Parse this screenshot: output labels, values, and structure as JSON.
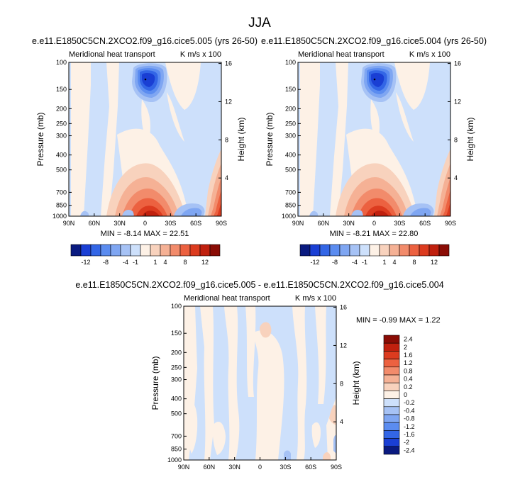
{
  "page": {
    "title": "JJA"
  },
  "panels": [
    {
      "title": "e.e11.E1850C5CN.2XCO2.f09_g16.cice5.005 (yrs 26-50)",
      "left_label": "Meridional heat transport",
      "right_label": "K m/s x 100",
      "stats": "MIN = -8.14  MAX = 22.51"
    },
    {
      "title": "e.e11.E1850C5CN.2XCO2.f09_g16.cice5.004 (yrs 26-50)",
      "left_label": "Meridional heat transport",
      "right_label": "K m/s x 100",
      "stats": "MIN = -8.21  MAX = 22.80"
    },
    {
      "title": "e.e11.E1850C5CN.2XCO2.f09_g16.cice5.005 - e.e11.E1850C5CN.2XCO2.f09_g16.cice5.004",
      "left_label": "Meridional heat transport",
      "right_label": "K m/s x 100",
      "stats": "MIN = -0.99  MAX =  1.22"
    }
  ],
  "colorbars": {
    "top_labels": [
      "-12",
      "-8",
      "-4",
      "-1",
      "1",
      "4",
      "8",
      "12"
    ],
    "top_colors": [
      "#0a1a80",
      "#1a3fd4",
      "#3366e6",
      "#5b8cf0",
      "#7fa6f2",
      "#a6c2f5",
      "#cde0fb",
      "#fdf1e6",
      "#f8d2bd",
      "#f5b195",
      "#f28b6b",
      "#ec6140",
      "#dc3b1f",
      "#c0200e",
      "#8a0c05"
    ],
    "diff_labels": [
      "2.4",
      "2",
      "1.6",
      "1.2",
      "0.8",
      "0.4",
      "0.2",
      "0",
      "-0.2",
      "-0.4",
      "-0.8",
      "-1.2",
      "-1.6",
      "-2",
      "-2.4"
    ],
    "diff_colors": [
      "#8a0c05",
      "#c0200e",
      "#dc3b1f",
      "#ec6140",
      "#f28b6b",
      "#f5b195",
      "#f8d2bd",
      "#fdf1e6",
      "#cde0fb",
      "#a6c2f5",
      "#7fa6f2",
      "#5b8cf0",
      "#3366e6",
      "#1a3fd4",
      "#0a1a80"
    ]
  },
  "chart_data": [
    {
      "type": "heatmap",
      "title": "e.e11.E1850C5CN.2XCO2.f09_g16.cice5.005 (yrs 26-50)",
      "xlabel": "",
      "ylabel": "Pressure (mb)",
      "y2label": "Height (km)",
      "x_ticks": [
        "90N",
        "60N",
        "30N",
        "0",
        "30S",
        "60S",
        "90S"
      ],
      "y_ticks": [
        100,
        150,
        200,
        250,
        300,
        400,
        500,
        700,
        850,
        1000
      ],
      "y2_ticks": [
        16,
        12,
        8,
        4
      ],
      "xlim": [
        90,
        -90
      ],
      "ylim": [
        1000,
        100
      ],
      "levels": [
        -12,
        -8,
        -4,
        -1,
        1,
        4,
        8,
        12
      ],
      "min": -8.14,
      "max": 22.51,
      "features": [
        {
          "lat": 6,
          "p": 200,
          "value": -8.14
        },
        {
          "lat": -5,
          "p": 950,
          "value": 22.51
        },
        {
          "lat": -75,
          "p": 900,
          "value": 10
        },
        {
          "lat": -32,
          "p": 980,
          "value": -6
        }
      ]
    },
    {
      "type": "heatmap",
      "title": "e.e11.E1850C5CN.2XCO2.f09_g16.cice5.004 (yrs 26-50)",
      "xlabel": "",
      "ylabel": "Pressure (mb)",
      "y2label": "Height (km)",
      "x_ticks": [
        "90N",
        "60N",
        "30N",
        "0",
        "30S",
        "60S",
        "90S"
      ],
      "y_ticks": [
        100,
        150,
        200,
        250,
        300,
        400,
        500,
        700,
        850,
        1000
      ],
      "y2_ticks": [
        16,
        12,
        8,
        4
      ],
      "xlim": [
        90,
        -90
      ],
      "ylim": [
        1000,
        100
      ],
      "levels": [
        -12,
        -8,
        -4,
        -1,
        1,
        4,
        8,
        12
      ],
      "min": -8.21,
      "max": 22.8,
      "features": [
        {
          "lat": 6,
          "p": 200,
          "value": -8.21
        },
        {
          "lat": -5,
          "p": 950,
          "value": 22.8
        },
        {
          "lat": -75,
          "p": 900,
          "value": 10
        },
        {
          "lat": -32,
          "p": 980,
          "value": -6
        }
      ]
    },
    {
      "type": "heatmap",
      "title": "e.e11.E1850C5CN.2XCO2.f09_g16.cice5.005 - e.e11.E1850C5CN.2XCO2.f09_g16.cice5.004",
      "xlabel": "",
      "ylabel": "Pressure (mb)",
      "y2label": "Height (km)",
      "x_ticks": [
        "90N",
        "60N",
        "30N",
        "0",
        "30S",
        "60S",
        "90S"
      ],
      "y_ticks": [
        100,
        150,
        200,
        250,
        300,
        400,
        500,
        700,
        850,
        1000
      ],
      "y2_ticks": [
        16,
        12,
        8,
        4
      ],
      "xlim": [
        90,
        -90
      ],
      "ylim": [
        1000,
        100
      ],
      "levels": [
        -2.4,
        -2,
        -1.6,
        -1.2,
        -0.8,
        -0.4,
        -0.2,
        0,
        0.2,
        0.4,
        0.8,
        1.2,
        1.6,
        2,
        2.4
      ],
      "min": -0.99,
      "max": 1.22,
      "features": [
        {
          "lat": 0,
          "p": 200,
          "value": 0.4
        },
        {
          "lat": -85,
          "p": 700,
          "value": 0.4
        }
      ]
    }
  ]
}
